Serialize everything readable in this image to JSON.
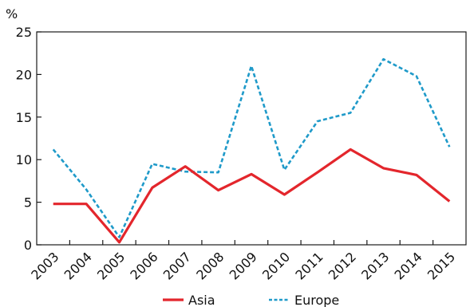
{
  "chart_data": {
    "type": "line",
    "ylabel": "%",
    "ylim": [
      0,
      25
    ],
    "yticks": [
      0,
      5,
      10,
      15,
      20,
      25
    ],
    "categories": [
      "2003",
      "2004",
      "2005",
      "2006",
      "2007",
      "2008",
      "2009",
      "2010",
      "2011",
      "2012",
      "2013",
      "2014",
      "2015"
    ],
    "grid": false,
    "legend_position": "bottom",
    "series": [
      {
        "name": "Asia",
        "color": "#e3262c",
        "style": "solid",
        "values": [
          4.8,
          4.8,
          0.3,
          6.7,
          9.2,
          6.4,
          8.3,
          5.9,
          8.5,
          11.2,
          9.0,
          8.2,
          5.1
        ]
      },
      {
        "name": "Europe",
        "color": "#1f9ac9",
        "style": "dashed",
        "values": [
          11.2,
          6.5,
          0.9,
          9.5,
          8.6,
          8.5,
          21.0,
          8.8,
          14.5,
          15.5,
          21.8,
          19.8,
          11.5
        ]
      }
    ]
  }
}
